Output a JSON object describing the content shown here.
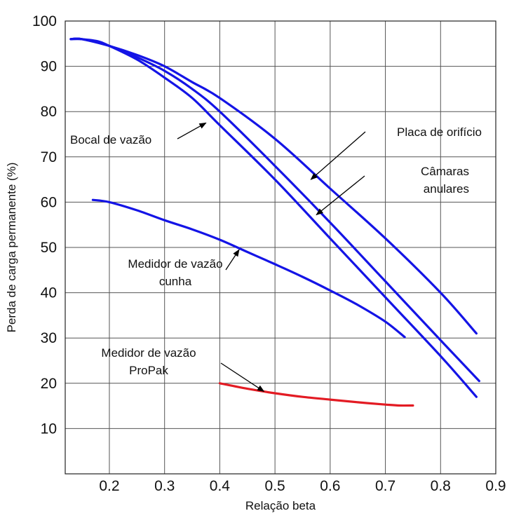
{
  "chart_data": {
    "type": "line",
    "title": "",
    "xlabel": "Relação beta",
    "ylabel": "Perda de carga permanente (%)",
    "xlim": [
      0.12,
      0.9
    ],
    "ylim": [
      0,
      100
    ],
    "x_ticks": [
      "0.2",
      "0.3",
      "0.4",
      "0.5",
      "0.6",
      "0.7",
      "0.8",
      "0.9"
    ],
    "x_tick_values": [
      0.2,
      0.3,
      0.4,
      0.5,
      0.6,
      0.7,
      0.8,
      0.9
    ],
    "y_ticks": [
      "10",
      "20",
      "30",
      "40",
      "50",
      "60",
      "70",
      "80",
      "90",
      "100"
    ],
    "y_tick_values": [
      10,
      20,
      30,
      40,
      50,
      60,
      70,
      80,
      90,
      100
    ],
    "grid": true,
    "legend": "none",
    "series": [
      {
        "color": "#1414e6",
        "points": [
          [
            0.13,
            96
          ],
          [
            0.15,
            96
          ],
          [
            0.18,
            95.5
          ],
          [
            0.2,
            94.5
          ],
          [
            0.25,
            91.5
          ],
          [
            0.3,
            87.5
          ],
          [
            0.35,
            83
          ],
          [
            0.4,
            77
          ],
          [
            0.5,
            65
          ],
          [
            0.6,
            52
          ],
          [
            0.7,
            39
          ],
          [
            0.8,
            26
          ],
          [
            0.865,
            17
          ]
        ]
      },
      {
        "color": "#1414e6",
        "points": [
          [
            0.13,
            96
          ],
          [
            0.15,
            96
          ],
          [
            0.2,
            94.5
          ],
          [
            0.25,
            92
          ],
          [
            0.3,
            89
          ],
          [
            0.35,
            85
          ],
          [
            0.4,
            80
          ],
          [
            0.5,
            68
          ],
          [
            0.6,
            55.5
          ],
          [
            0.7,
            42.5
          ],
          [
            0.8,
            29.5
          ],
          [
            0.87,
            20.5
          ]
        ]
      },
      {
        "color": "#1414e6",
        "points": [
          [
            0.13,
            96
          ],
          [
            0.15,
            96
          ],
          [
            0.2,
            94.5
          ],
          [
            0.25,
            92.5
          ],
          [
            0.3,
            90
          ],
          [
            0.35,
            86.5
          ],
          [
            0.4,
            83
          ],
          [
            0.5,
            74
          ],
          [
            0.6,
            63
          ],
          [
            0.7,
            52
          ],
          [
            0.8,
            40
          ],
          [
            0.865,
            31
          ]
        ]
      },
      {
        "color": "#1414e6",
        "points": [
          [
            0.17,
            60.5
          ],
          [
            0.2,
            60
          ],
          [
            0.25,
            58.2
          ],
          [
            0.3,
            56
          ],
          [
            0.35,
            54
          ],
          [
            0.4,
            51.7
          ],
          [
            0.45,
            49
          ],
          [
            0.5,
            46.3
          ],
          [
            0.55,
            43.5
          ],
          [
            0.6,
            40.5
          ],
          [
            0.65,
            37.3
          ],
          [
            0.7,
            33.6
          ],
          [
            0.735,
            30.2
          ]
        ]
      },
      {
        "color": "#e31b23",
        "points": [
          [
            0.4,
            20
          ],
          [
            0.45,
            18.8
          ],
          [
            0.5,
            17.8
          ],
          [
            0.55,
            17
          ],
          [
            0.6,
            16.4
          ],
          [
            0.65,
            15.8
          ],
          [
            0.7,
            15.3
          ],
          [
            0.725,
            15.1
          ],
          [
            0.75,
            15.1
          ]
        ]
      }
    ],
    "annotations": [
      {
        "lines": [
          "Bocal de vazão"
        ],
        "arrow_to": [
          0.375,
          77.5
        ]
      },
      {
        "lines": [
          "Placa de orifício"
        ],
        "arrow_to": [
          0.565,
          65
        ]
      },
      {
        "lines": [
          "Câmaras",
          "anulares"
        ],
        "arrow_to": [
          0.575,
          57.2
        ]
      },
      {
        "lines": [
          "Medidor de vazão",
          "cunha"
        ],
        "arrow_to": [
          0.435,
          49.5
        ]
      },
      {
        "lines": [
          "Medidor de vazão",
          "ProPak"
        ],
        "arrow_to": [
          0.48,
          18.2
        ]
      }
    ]
  }
}
